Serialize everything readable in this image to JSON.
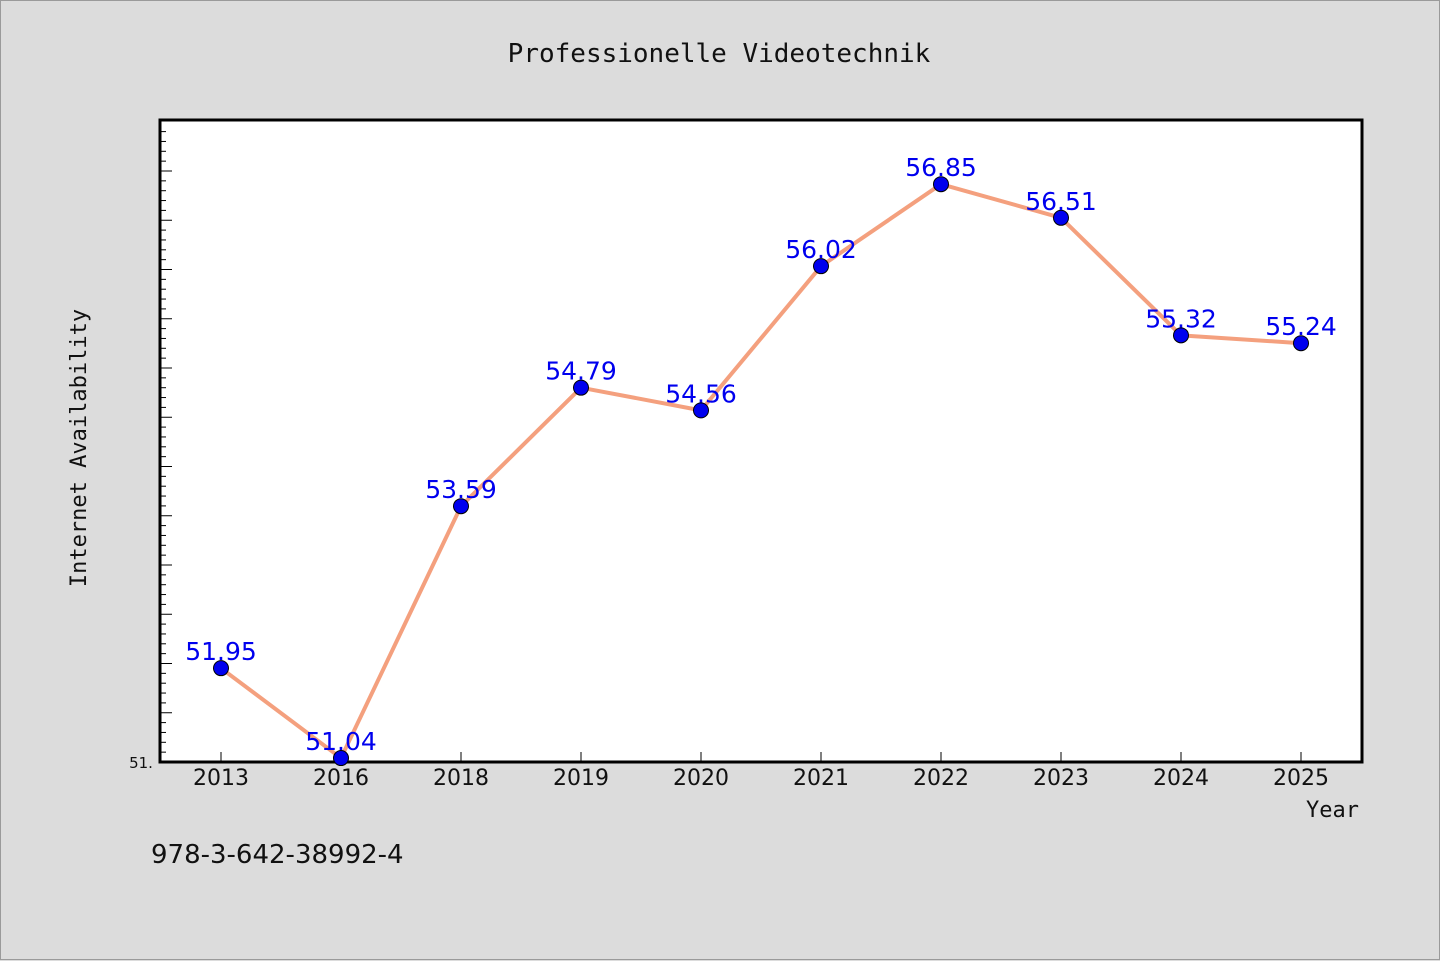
{
  "chart_data": {
    "type": "line",
    "title": "Professionelle Videotechnik",
    "xlabel": "Year",
    "ylabel": "Internet Availability",
    "categories": [
      "2013",
      "2016",
      "2018",
      "2019",
      "2020",
      "2021",
      "2022",
      "2023",
      "2024",
      "2025"
    ],
    "series": [
      {
        "values": [
          51.95,
          51.04,
          53.59,
          54.79,
          54.56,
          56.02,
          56.85,
          56.51,
          55.32,
          55.24
        ],
        "labels": [
          "51.95",
          "51.04",
          "53.59",
          "54.79",
          "54.56",
          "56.02",
          "56.85",
          "56.51",
          "55.32",
          "55.24"
        ],
        "line_color": "#f4a07e",
        "marker_color": "#0000ee"
      }
    ],
    "ylim": [
      51.0,
      57.5
    ],
    "y_tick_label": "51.",
    "grid": false,
    "background": "#ffffff"
  },
  "footer_code": "978-3-642-38992-4"
}
